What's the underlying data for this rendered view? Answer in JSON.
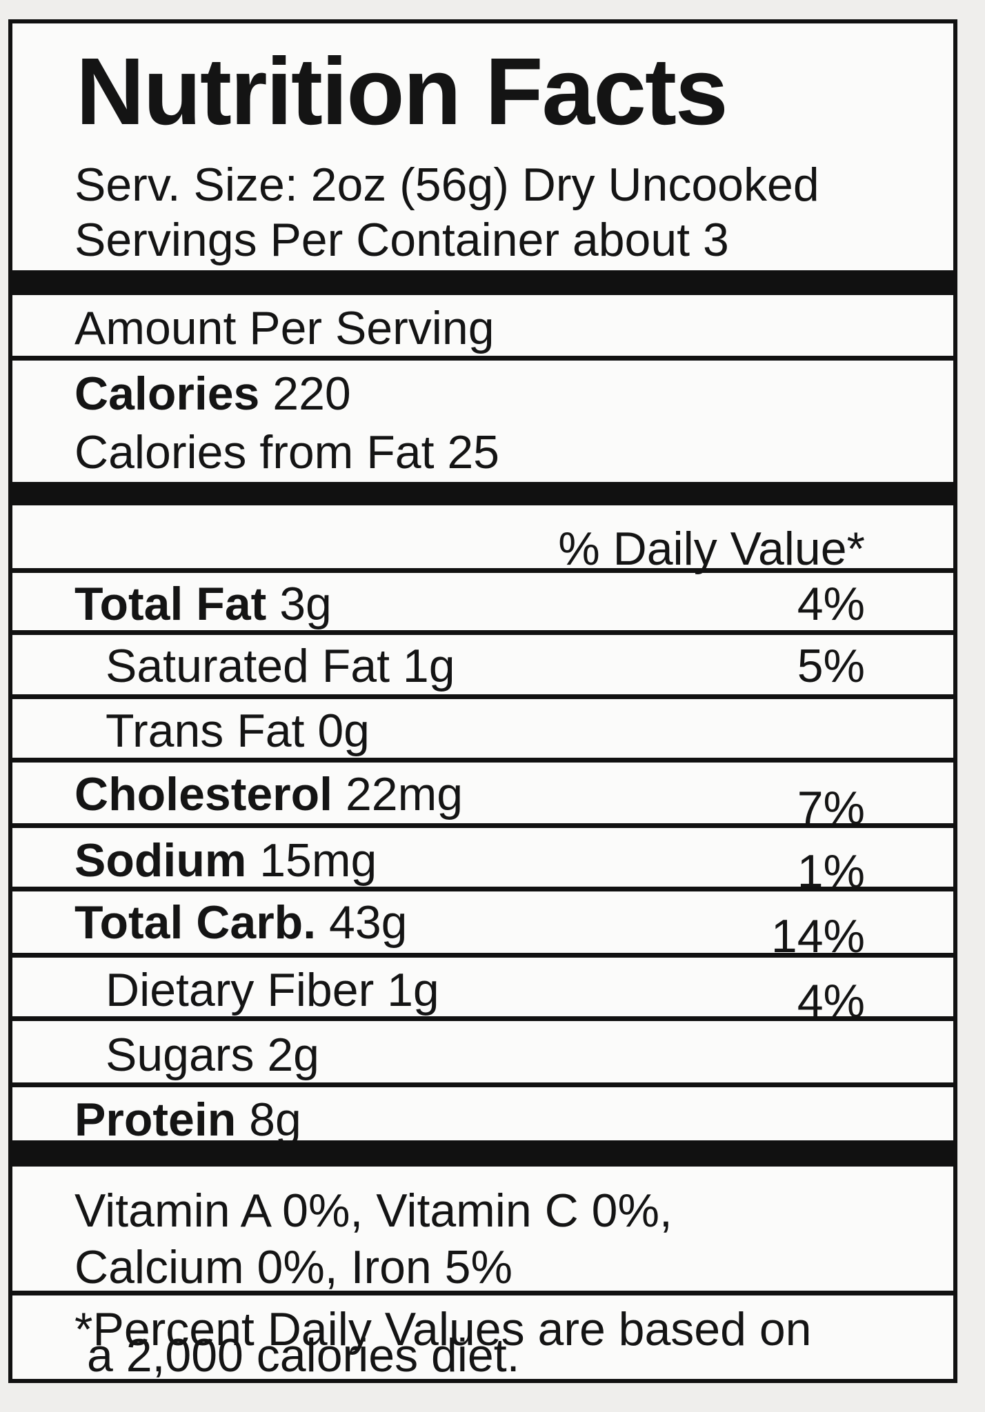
{
  "title": "Nutrition Facts",
  "serving_size": "Serv. Size: 2oz (56g) Dry Uncooked",
  "servings_per_container": "Servings Per Container about 3",
  "amount_per_serving": "Amount Per Serving",
  "calories": {
    "label": "Calories",
    "value": "220"
  },
  "calories_from_fat": "Calories from Fat 25",
  "daily_value_header": "% Daily Value*",
  "nutrients": [
    {
      "label": "Total Fat",
      "amount": "3g",
      "dv": "4%"
    },
    {
      "label": "Saturated Fat 1g",
      "dv": "5%"
    },
    {
      "label": "Trans Fat 0g"
    },
    {
      "label": "Cholesterol",
      "amount": "22mg",
      "dv": "7%"
    },
    {
      "label": "Sodium",
      "amount": "15mg",
      "dv": "1%"
    },
    {
      "label": "Total Carb.",
      "amount": "43g",
      "dv": "14%"
    },
    {
      "label": "Dietary Fiber 1g",
      "dv": "4%"
    },
    {
      "label": "Sugars 2g"
    },
    {
      "label": "Protein",
      "amount": "8g"
    }
  ],
  "vitamins_line1": "Vitamin A 0%, Vitamin C 0%,",
  "vitamins_line2": "Calcium 0%, Iron 5%",
  "footnote_line1": "*Percent Daily Values are based on",
  "footnote_line2": "a 2,000 calories diet."
}
